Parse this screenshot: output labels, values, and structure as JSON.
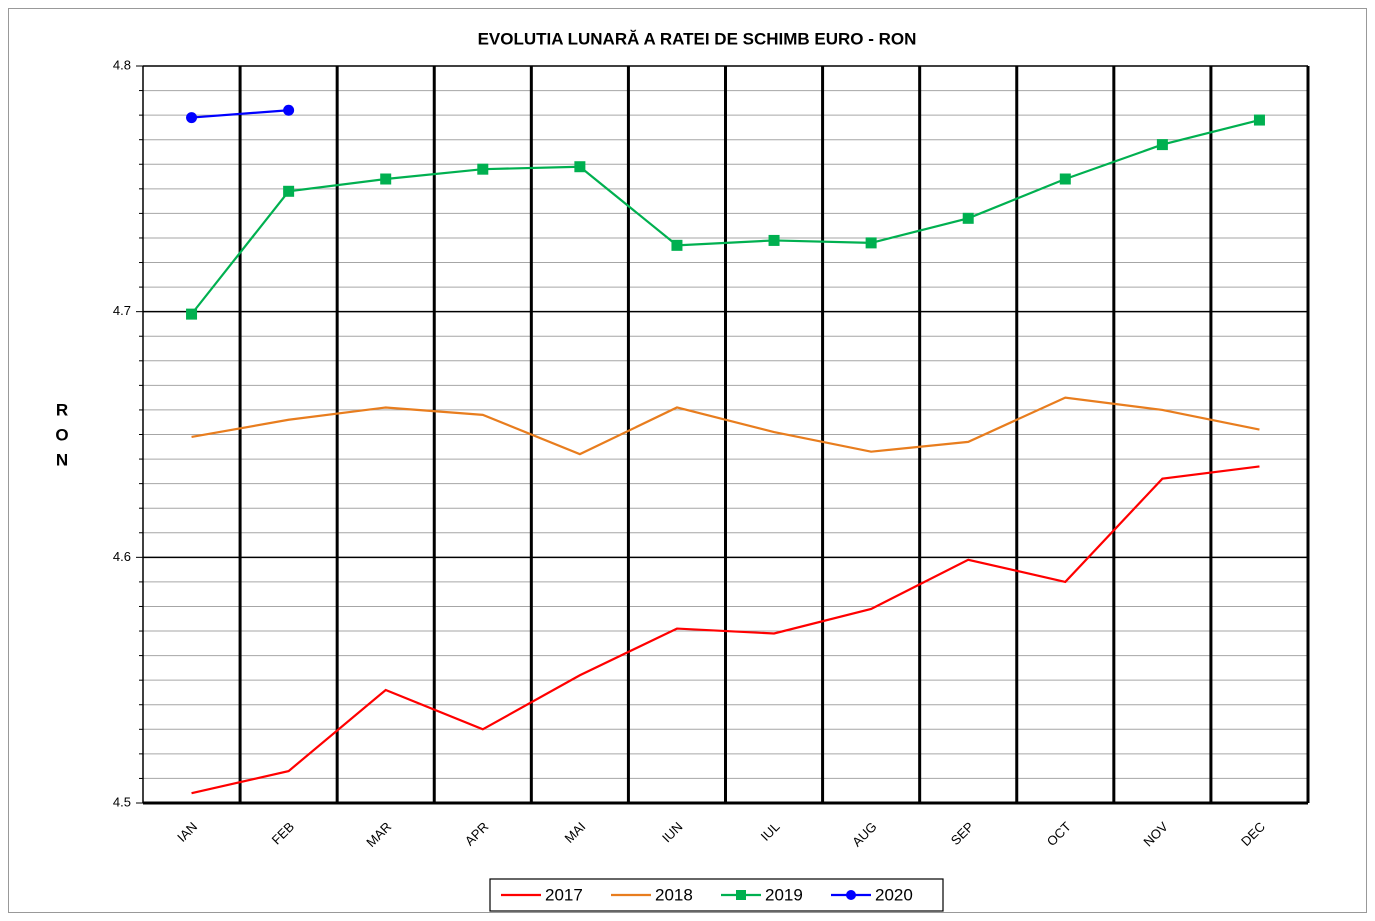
{
  "chart_data": {
    "type": "line",
    "title": "EVOLUTIA LUNARĂ A RATEI DE SCHIMB EURO - RON",
    "y_label": "RON",
    "categories": [
      "IAN",
      "FEB",
      "MAR",
      "APR",
      "MAI",
      "IUN",
      "IUL",
      "AUG",
      "SEP",
      "OCT",
      "NOV",
      "DEC"
    ],
    "series": [
      {
        "name": "2017",
        "color": "#ff0000",
        "values": [
          4.504,
          4.513,
          4.546,
          4.53,
          4.552,
          4.571,
          4.569,
          4.579,
          4.599,
          4.59,
          4.632,
          4.637
        ]
      },
      {
        "name": "2018",
        "color": "#e87d1e",
        "values": [
          4.649,
          4.656,
          4.661,
          4.658,
          4.642,
          4.661,
          4.651,
          4.643,
          4.647,
          4.665,
          4.66,
          4.652
        ]
      },
      {
        "name": "2019",
        "color": "#00b050",
        "marker": "square",
        "values": [
          4.699,
          4.749,
          4.754,
          4.758,
          4.759,
          4.727,
          4.729,
          4.728,
          4.738,
          4.754,
          4.768,
          4.778
        ]
      },
      {
        "name": "2020",
        "color": "#0000ff",
        "marker": "circle",
        "values": [
          4.779,
          4.782,
          null,
          null,
          null,
          null,
          null,
          null,
          null,
          null,
          null,
          null
        ]
      }
    ],
    "ylim": [
      4.5,
      4.8
    ],
    "yticks": [
      4.5,
      4.6,
      4.7,
      4.8
    ],
    "grid": true,
    "legend": "bottom"
  }
}
